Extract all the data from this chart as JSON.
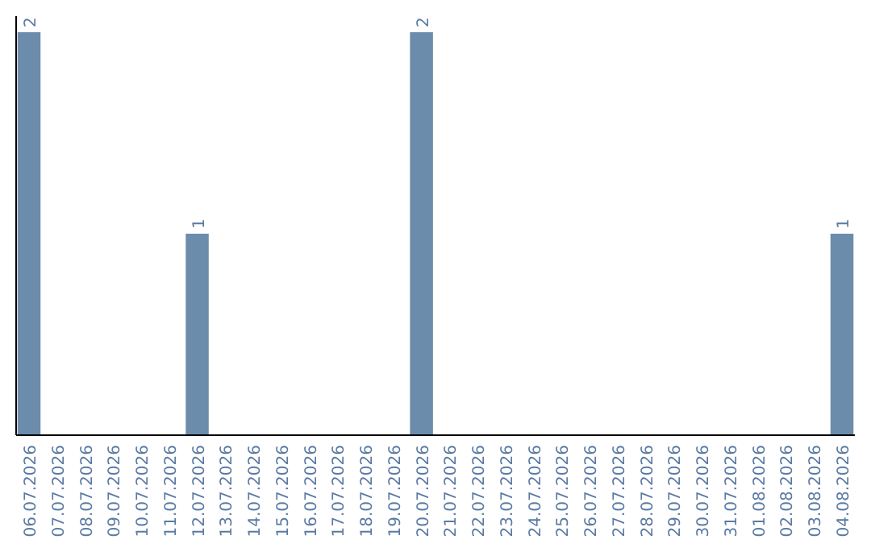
{
  "chart_data": {
    "type": "bar",
    "categories": [
      "06.07.2026",
      "07.07.2026",
      "08.07.2026",
      "09.07.2026",
      "10.07.2026",
      "11.07.2026",
      "12.07.2026",
      "13.07.2026",
      "14.07.2026",
      "15.07.2026",
      "16.07.2026",
      "17.07.2026",
      "18.07.2026",
      "19.07.2026",
      "20.07.2026",
      "21.07.2026",
      "22.07.2026",
      "23.07.2026",
      "24.07.2026",
      "25.07.2026",
      "26.07.2026",
      "27.07.2026",
      "28.07.2026",
      "29.07.2026",
      "30.07.2026",
      "31.07.2026",
      "01.08.2026",
      "02.08.2026",
      "03.08.2026",
      "04.08.2026"
    ],
    "values": [
      2,
      0,
      0,
      0,
      0,
      0,
      1,
      0,
      0,
      0,
      0,
      0,
      0,
      0,
      2,
      0,
      0,
      0,
      0,
      0,
      0,
      0,
      0,
      0,
      0,
      0,
      0,
      0,
      0,
      1
    ],
    "value_labels": [
      "2",
      null,
      null,
      null,
      null,
      null,
      "1",
      null,
      null,
      null,
      null,
      null,
      null,
      null,
      "2",
      null,
      null,
      null,
      null,
      null,
      null,
      null,
      null,
      null,
      null,
      null,
      null,
      null,
      null,
      "1"
    ],
    "color": "#6b8cab",
    "tick_labels": "x"
  }
}
